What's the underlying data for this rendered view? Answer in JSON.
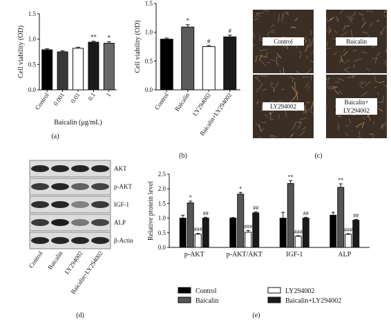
{
  "panels": {
    "a_caption": "(a)",
    "b_caption": "(b)",
    "c_caption": "(c)",
    "d_caption": "(d)",
    "e_caption": "(e)"
  },
  "micrographs": {
    "labels": [
      "Control",
      "Baicalin",
      "LY294002",
      "Baicalin+\nLY294002"
    ]
  },
  "western_blot": {
    "proteins": [
      "AKT",
      "p-AKT",
      "IGF-1",
      "ALP",
      "β-Actin"
    ],
    "lanes": [
      "Control",
      "Baicalin",
      "LY294002",
      "Baicalin+LY294002"
    ]
  },
  "chart_data": [
    {
      "id": "a",
      "type": "bar",
      "categories": [
        "Control",
        "0.001",
        "0.01",
        "0.1",
        "1"
      ],
      "values": [
        0.79,
        0.75,
        0.82,
        0.94,
        0.92
      ],
      "errors": [
        0.02,
        0.02,
        0.02,
        0.02,
        0.03
      ],
      "fills": [
        "#000000",
        "#3a3a3a",
        "#ffffff",
        "#1a1a1a",
        "#6a6a6a"
      ],
      "annotations": [
        "",
        "",
        "",
        "**",
        "*"
      ],
      "xlabel": "Baicalin (μg/mL)",
      "ylabel": "Cell viability (OD)",
      "ylim": [
        0,
        1.5
      ],
      "yticks": [
        "0.0",
        "0.5",
        "1.0",
        "1.5"
      ],
      "grid": false
    },
    {
      "id": "b",
      "type": "bar",
      "categories": [
        "Control",
        "Baicalin",
        "LY294002",
        "Baicalin+LY294002"
      ],
      "values": [
        0.88,
        1.09,
        0.75,
        0.92
      ],
      "errors": [
        0.02,
        0.04,
        0.02,
        0.03
      ],
      "fills": [
        "#000000",
        "#5a5a5a",
        "#ffffff",
        "#1a1a1a"
      ],
      "annotations": [
        "",
        "*",
        "#",
        "#"
      ],
      "xlabel": "",
      "ylabel": "Cell viability (OD)",
      "ylim": [
        0,
        1.5
      ],
      "yticks": [
        "0.0",
        "0.5",
        "1.0",
        "1.5"
      ],
      "grid": false
    },
    {
      "id": "e",
      "type": "bar",
      "categories": [
        "p-AKT",
        "p-AKT/AKT",
        "IGF-1",
        "ALP"
      ],
      "series": [
        {
          "name": "Control",
          "values": [
            1.0,
            1.0,
            1.0,
            1.1
          ],
          "errors": [
            0.1,
            0.02,
            0.2,
            0.1
          ],
          "fill": "#000000",
          "annotations": [
            "",
            "",
            "",
            ""
          ]
        },
        {
          "name": "Baicalin",
          "values": [
            1.52,
            1.82,
            2.18,
            2.05
          ],
          "errors": [
            0.06,
            0.06,
            0.1,
            0.12
          ],
          "fill": "#555555",
          "annotations": [
            "*",
            "*",
            "**",
            "**"
          ]
        },
        {
          "name": "LY294002",
          "values": [
            0.45,
            0.52,
            0.38,
            0.45
          ],
          "errors": [
            0.03,
            0.06,
            0.02,
            0.02
          ],
          "fill": "#ffffff",
          "annotations": [
            "###",
            "###",
            "###",
            "###"
          ]
        },
        {
          "name": "Baicalin+LY294002",
          "values": [
            1.0,
            1.18,
            1.0,
            0.93
          ],
          "errors": [
            0.03,
            0.03,
            0.03,
            0.03
          ],
          "fill": "#1a1a1a",
          "annotations": [
            "##",
            "##",
            "##",
            "##"
          ]
        }
      ],
      "ylabel": "Relative protein level",
      "ylim": [
        0,
        2.5
      ],
      "yticks": [
        "0.0",
        "0.5",
        "1.0",
        "1.5",
        "2.0",
        "2.5"
      ],
      "legend_position": "bottom",
      "grid": false
    }
  ]
}
